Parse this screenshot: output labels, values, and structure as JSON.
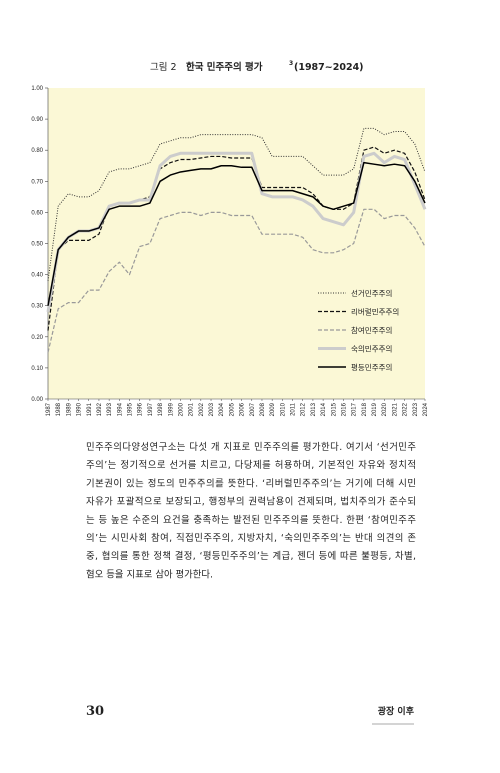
{
  "chart_data": {
    "type": "line",
    "figure_label": "그림 2",
    "title": "한국 민주주의 평가",
    "title_note": "3",
    "title_range": "(1987~2024)",
    "background": "#fbf8d6",
    "legend": "lower right",
    "categories": [
      "1987",
      "1988",
      "1989",
      "1990",
      "1991",
      "1992",
      "1993",
      "1994",
      "1995",
      "1996",
      "1997",
      "1998",
      "1999",
      "2000",
      "2001",
      "2002",
      "2003",
      "2004",
      "2005",
      "2006",
      "2007",
      "2008",
      "2009",
      "2010",
      "2011",
      "2012",
      "2013",
      "2014",
      "2015",
      "2016",
      "2017",
      "2018",
      "2019",
      "2020",
      "2021",
      "2022",
      "2023",
      "2024"
    ],
    "ylim": [
      0,
      1
    ],
    "yticks": [
      {
        "value": 0,
        "label": "0.00"
      },
      {
        "value": 0.1,
        "label": "0.10"
      },
      {
        "value": 0.2,
        "label": "0.20"
      },
      {
        "value": 0.3,
        "label": "0.30"
      },
      {
        "value": 0.4,
        "label": "0.40"
      },
      {
        "value": 0.5,
        "label": "0.50"
      },
      {
        "value": 0.6,
        "label": "0.60"
      },
      {
        "value": 0.7,
        "label": "0.70"
      },
      {
        "value": 0.8,
        "label": "0.80"
      },
      {
        "value": 0.9,
        "label": "0.90"
      },
      {
        "value": 1,
        "label": "1.00"
      }
    ],
    "series": [
      {
        "name": "선거민주주의",
        "color": "#333333",
        "style": "dotted",
        "width": 1,
        "values": [
          0.38,
          0.62,
          0.66,
          0.65,
          0.65,
          0.67,
          0.73,
          0.74,
          0.74,
          0.75,
          0.76,
          0.82,
          0.83,
          0.84,
          0.84,
          0.85,
          0.85,
          0.85,
          0.85,
          0.85,
          0.85,
          0.84,
          0.78,
          0.78,
          0.78,
          0.78,
          0.75,
          0.72,
          0.72,
          0.72,
          0.74,
          0.87,
          0.87,
          0.85,
          0.86,
          0.86,
          0.82,
          0.73
        ]
      },
      {
        "name": "리버럴민주주의",
        "color": "#111111",
        "style": "dashed",
        "width": 1.2,
        "values": [
          0.22,
          0.48,
          0.51,
          0.51,
          0.51,
          0.53,
          0.62,
          0.63,
          0.63,
          0.64,
          0.65,
          0.74,
          0.76,
          0.77,
          0.77,
          0.775,
          0.78,
          0.78,
          0.775,
          0.775,
          0.775,
          0.68,
          0.68,
          0.68,
          0.68,
          0.68,
          0.66,
          0.62,
          0.61,
          0.61,
          0.63,
          0.8,
          0.81,
          0.79,
          0.8,
          0.79,
          0.73,
          0.64
        ]
      },
      {
        "name": "참여민주주의",
        "color": "#999999",
        "style": "dashed",
        "width": 1.2,
        "values": [
          0.15,
          0.29,
          0.31,
          0.31,
          0.35,
          0.35,
          0.41,
          0.44,
          0.4,
          0.49,
          0.5,
          0.58,
          0.59,
          0.6,
          0.6,
          0.59,
          0.6,
          0.6,
          0.59,
          0.59,
          0.59,
          0.53,
          0.53,
          0.53,
          0.53,
          0.52,
          0.48,
          0.47,
          0.47,
          0.48,
          0.5,
          0.61,
          0.61,
          0.58,
          0.59,
          0.59,
          0.55,
          0.49
        ]
      },
      {
        "name": "숙의민주주의",
        "color": "#cccccc",
        "style": "solid",
        "width": 3,
        "values": [
          0.28,
          0.48,
          0.52,
          0.54,
          0.54,
          0.55,
          0.62,
          0.63,
          0.63,
          0.64,
          0.64,
          0.75,
          0.78,
          0.79,
          0.79,
          0.79,
          0.79,
          0.79,
          0.79,
          0.79,
          0.79,
          0.66,
          0.65,
          0.65,
          0.65,
          0.64,
          0.62,
          0.58,
          0.57,
          0.56,
          0.6,
          0.78,
          0.79,
          0.76,
          0.78,
          0.77,
          0.69,
          0.61
        ]
      },
      {
        "name": "평등민주주의",
        "color": "#000000",
        "style": "solid",
        "width": 1.5,
        "values": [
          0.3,
          0.48,
          0.52,
          0.54,
          0.54,
          0.55,
          0.61,
          0.62,
          0.62,
          0.62,
          0.63,
          0.7,
          0.72,
          0.73,
          0.735,
          0.74,
          0.74,
          0.75,
          0.75,
          0.745,
          0.745,
          0.67,
          0.67,
          0.67,
          0.67,
          0.66,
          0.65,
          0.62,
          0.61,
          0.62,
          0.63,
          0.76,
          0.755,
          0.75,
          0.755,
          0.75,
          0.7,
          0.63
        ]
      }
    ]
  },
  "body": {
    "lines": [
      "민주주의다양성연구소는 다섯 개 지표로 민주주의를 평가한다. 여기서 ‘선거민주",
      "주의’는 정기적으로 선거를 치르고, 다당제를 허용하며, 기본적인 자유와 정치적",
      "기본권이 있는 정도의 민주주의를 뜻한다. ‘리버럴민주주의’는 거기에 더해 시민",
      "자유가 포괄적으로 보장되고, 행정부의 권력남용이 견제되며, 법치주의가 준수되",
      "는 등 높은 수준의 요건을 충족하는 발전된 민주주의를 뜻한다. 한편 ‘참여민주주",
      "의’는 시민사회 참여, 직접민주주의, 지방자치, ‘숙의민주주의’는 반대 의견의 존",
      "중, 협의를 통한 정책 결정, ‘평등민주주의’는 계급, 젠더 등에 따른 불평등, 차별,",
      "혐오 등을 지표로 삼아 평가한다."
    ]
  },
  "footer": {
    "page_number": "30",
    "book_title": "광장 이후"
  }
}
